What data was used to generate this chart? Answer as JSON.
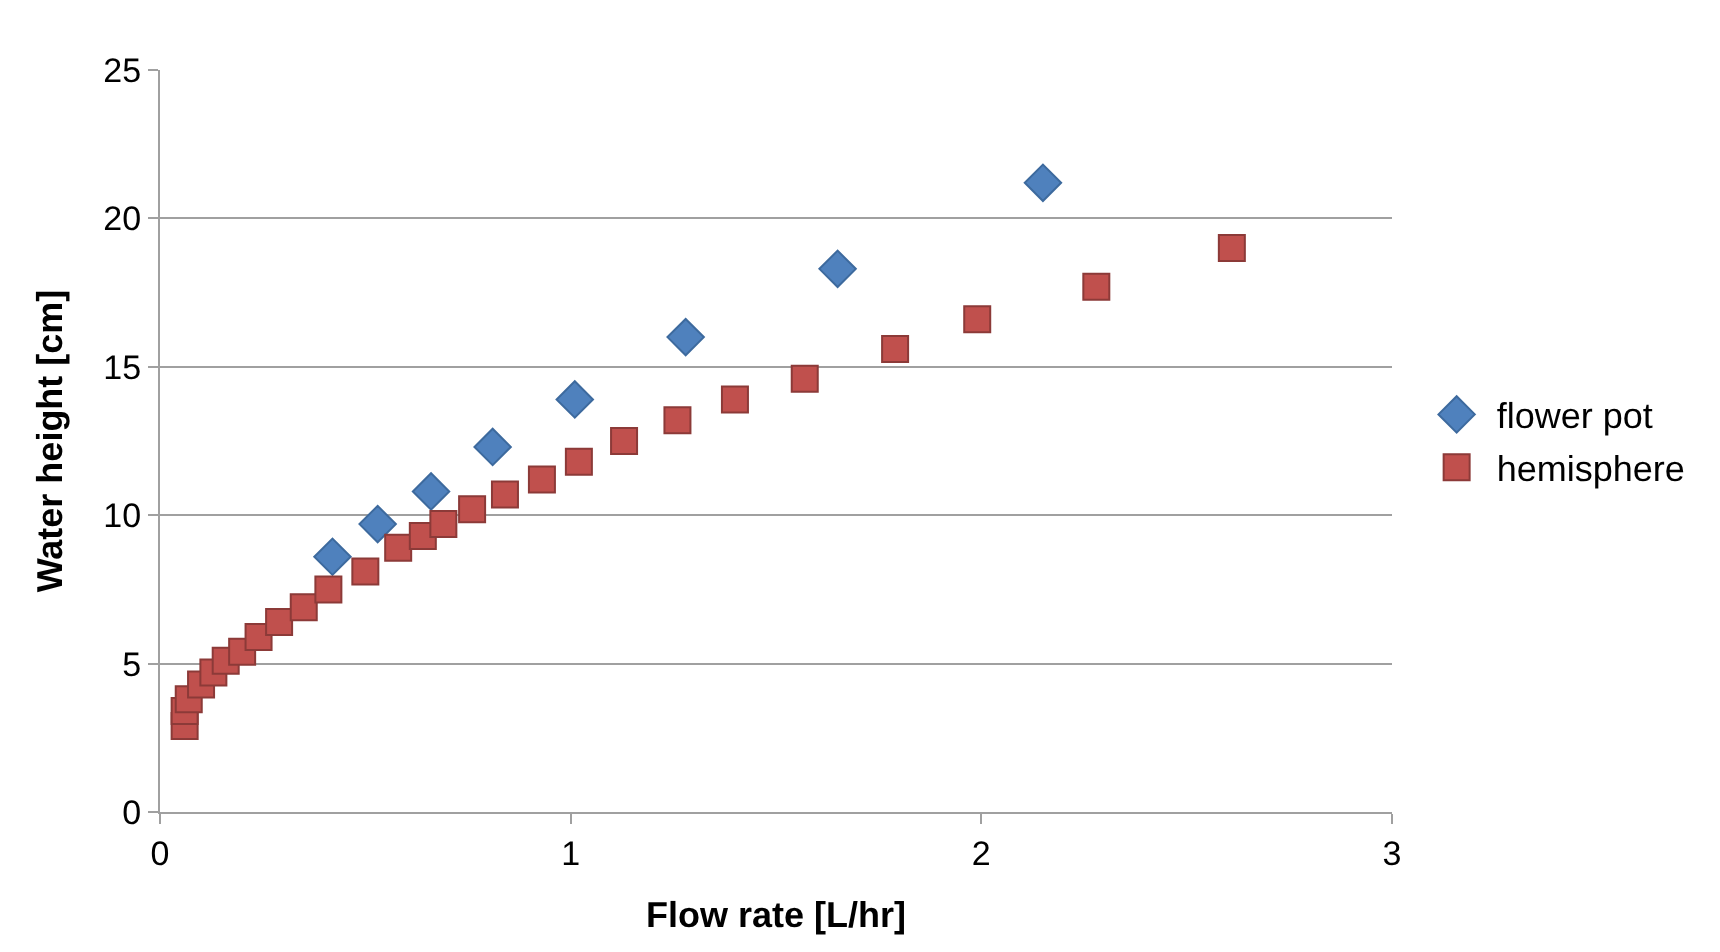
{
  "chart_data": {
    "type": "scatter",
    "xlabel": "Flow rate [L/hr]",
    "ylabel": "Water height [cm]",
    "xlim": [
      0,
      3
    ],
    "xticks": [
      0,
      1,
      2,
      3
    ],
    "ylim": [
      0,
      25
    ],
    "yticks": [
      0,
      5,
      10,
      15,
      20,
      25
    ],
    "grid": "y",
    "legend": "right",
    "series": [
      {
        "name": "flower pot",
        "color": "#4f81bd",
        "marker": "diamond",
        "x": [
          0.42,
          0.53,
          0.66,
          0.81,
          1.01,
          1.28,
          1.65,
          2.15
        ],
        "values": [
          8.6,
          9.7,
          10.8,
          12.3,
          13.9,
          16.0,
          18.3,
          21.2
        ]
      },
      {
        "name": "hemisphere",
        "color": "#c0504d",
        "marker": "square",
        "x": [
          0.06,
          0.06,
          0.07,
          0.1,
          0.13,
          0.16,
          0.2,
          0.24,
          0.29,
          0.35,
          0.41,
          0.5,
          0.58,
          0.64,
          0.69,
          0.76,
          0.84,
          0.93,
          1.02,
          1.13,
          1.26,
          1.4,
          1.57,
          1.79,
          1.99,
          2.28,
          2.61
        ],
        "values": [
          2.9,
          3.4,
          3.8,
          4.3,
          4.7,
          5.1,
          5.4,
          5.9,
          6.4,
          6.9,
          7.5,
          8.1,
          8.9,
          9.3,
          9.7,
          10.2,
          10.7,
          11.2,
          11.8,
          12.5,
          13.2,
          13.9,
          14.6,
          15.6,
          16.6,
          17.7,
          19.0
        ]
      }
    ]
  }
}
